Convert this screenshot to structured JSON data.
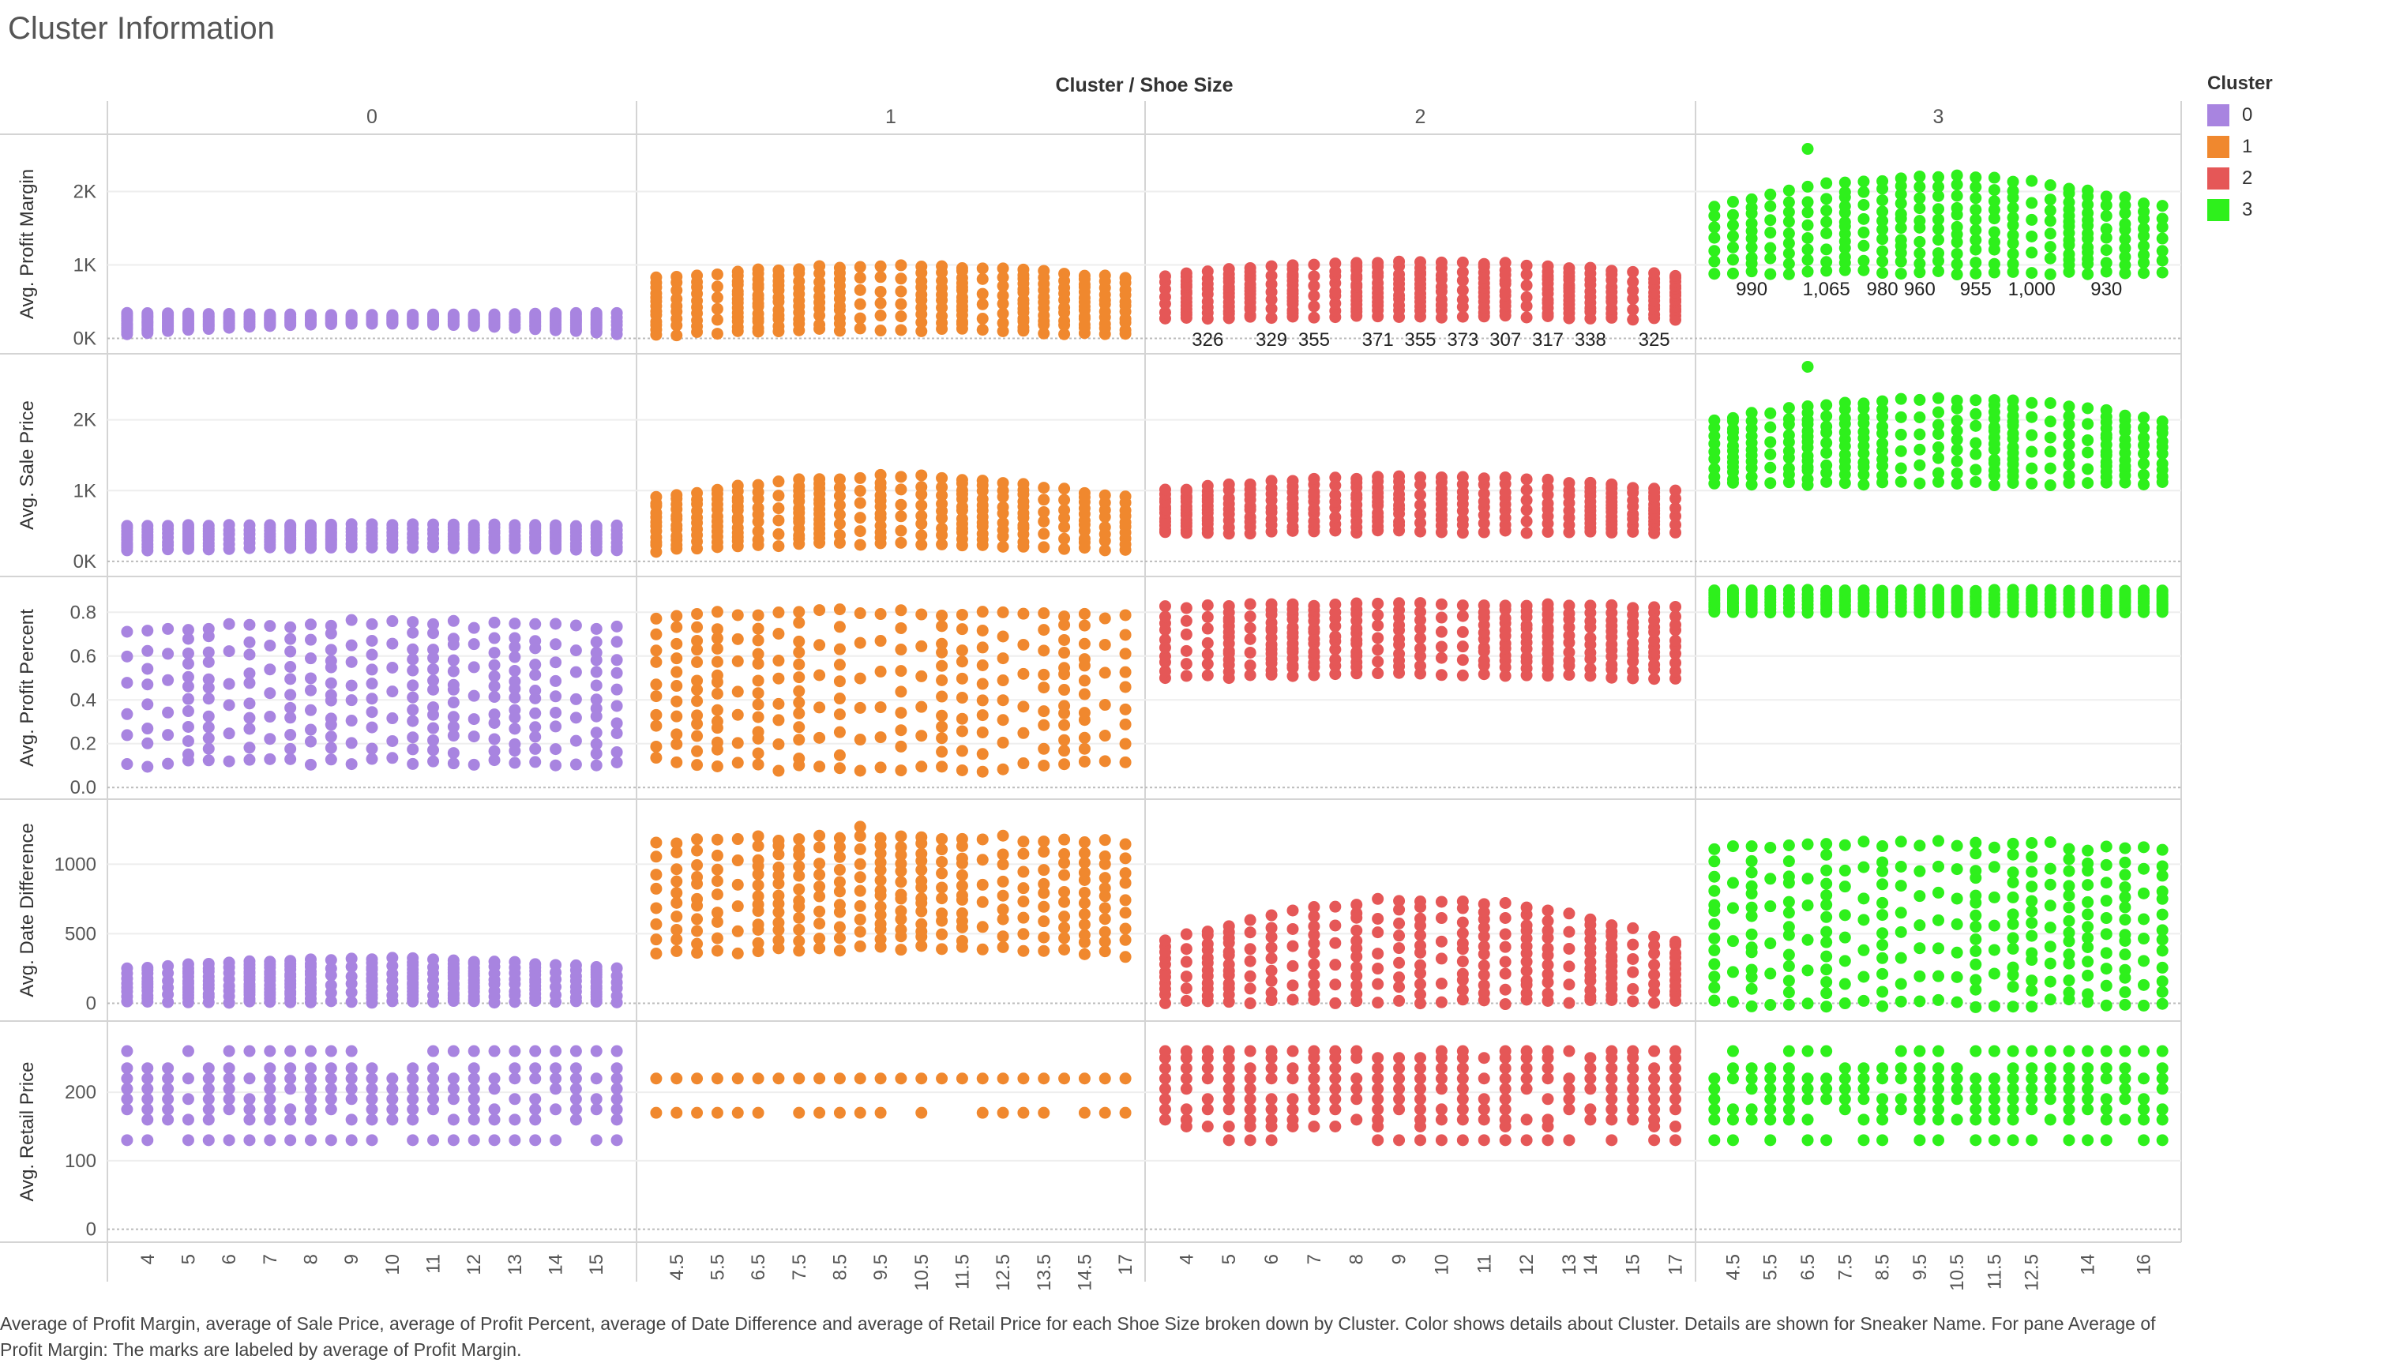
{
  "page": {
    "title": "Cluster Information",
    "caption": "Average of Profit Margin, average of Sale Price, average of Profit Percent, average of Date Difference and average of Retail Price for each Shoe Size broken down by Cluster.  Color shows details about Cluster.  Details are shown for Sneaker Name.  For pane Average of Profit Margin:  The marks are labeled by average of Profit Margin."
  },
  "legend": {
    "title": "Cluster",
    "items": [
      {
        "label": "0",
        "color": "#a884e0"
      },
      {
        "label": "1",
        "color": "#f0882e"
      },
      {
        "label": "2",
        "color": "#e55757"
      },
      {
        "label": "3",
        "color": "#2ef01c"
      }
    ]
  },
  "chart_data": {
    "type": "scatter",
    "header_title": "Cluster / Shoe Size",
    "columns": [
      {
        "cluster": "0",
        "sizes": [
          3.5,
          4,
          4.5,
          5,
          5.5,
          6,
          6.5,
          7,
          7.5,
          8,
          8.5,
          9,
          9.5,
          10,
          10.5,
          11,
          11.5,
          12,
          12.5,
          13,
          13.5,
          14,
          14.5,
          15,
          15.5
        ],
        "tick_labels": [
          "4",
          "5",
          "6",
          "7",
          "8",
          "9",
          "10",
          "11",
          "12",
          "13",
          "14",
          "15"
        ]
      },
      {
        "cluster": "1",
        "sizes": [
          4,
          4.5,
          5,
          5.5,
          6,
          6.5,
          7,
          7.5,
          8,
          8.5,
          9,
          9.5,
          10,
          10.5,
          11,
          11.5,
          12,
          12.5,
          13,
          13.5,
          14,
          14.5,
          15,
          17
        ],
        "tick_labels": [
          "4.5",
          "5.5",
          "6.5",
          "7.5",
          "8.5",
          "9.5",
          "10.5",
          "11.5",
          "12.5",
          "13.5",
          "14.5",
          "17"
        ]
      },
      {
        "cluster": "2",
        "sizes": [
          3.5,
          4,
          4.5,
          5,
          5.5,
          6,
          6.5,
          7,
          7.5,
          8,
          8.5,
          9,
          9.5,
          10,
          10.5,
          11,
          11.5,
          12,
          12.5,
          13,
          14,
          14.5,
          15,
          15.5,
          17
        ],
        "tick_labels": [
          "4",
          "5",
          "6",
          "7",
          "8",
          "9",
          "10",
          "11",
          "12",
          "13",
          "14",
          "15",
          "17"
        ]
      },
      {
        "cluster": "3",
        "sizes": [
          4,
          4.5,
          5,
          5.5,
          6,
          6.5,
          7,
          7.5,
          8,
          8.5,
          9,
          9.5,
          10,
          10.5,
          11,
          11.5,
          12,
          12.5,
          13,
          13.5,
          14,
          14.5,
          15,
          16,
          17
        ],
        "tick_labels": [
          "4.5",
          "5.5",
          "6.5",
          "7.5",
          "8.5",
          "9.5",
          "10.5",
          "11.5",
          "12.5",
          "14",
          "16"
        ]
      }
    ],
    "measures": [
      {
        "label": "Avg. Profit Margin",
        "ylim": [
          -80,
          2650
        ],
        "ticks": [
          {
            "v": 0,
            "t": "0K"
          },
          {
            "v": 1000,
            "t": "1K"
          },
          {
            "v": 2000,
            "t": "2K"
          }
        ],
        "ranges": {
          "0": [
            [
              60,
              350
            ],
            [
              200,
              320
            ]
          ],
          "1": [
            [
              50,
              820
            ],
            [
              120,
              990
            ]
          ],
          "2": [
            [
              260,
              860
            ],
            [
              300,
              1040
            ]
          ],
          "3": [
            [
              900,
              1800
            ],
            [
              900,
              2200
            ]
          ]
        },
        "outliers": {
          "3": [
            [
              6.5,
              2580
            ]
          ]
        }
      },
      {
        "label": "Avg. Sale Price",
        "ylim": [
          -80,
          2800
        ],
        "ticks": [
          {
            "v": 0,
            "t": "0K"
          },
          {
            "v": 1000,
            "t": "1K"
          },
          {
            "v": 2000,
            "t": "2K"
          }
        ],
        "ranges": {
          "0": [
            [
              150,
              500
            ],
            [
              200,
              520
            ]
          ],
          "1": [
            [
              150,
              900
            ],
            [
              250,
              1200
            ]
          ],
          "2": [
            [
              400,
              1000
            ],
            [
              420,
              1200
            ]
          ],
          "3": [
            [
              1100,
              2000
            ],
            [
              1100,
              2300
            ]
          ]
        },
        "outliers": {
          "3": [
            [
              6.5,
              2750
            ]
          ]
        }
      },
      {
        "label": "Avg. Profit Percent",
        "ylim": [
          -0.01,
          0.92
        ],
        "ticks": [
          {
            "v": 0,
            "t": "0.0"
          },
          {
            "v": 0.2,
            "t": "0.2"
          },
          {
            "v": 0.4,
            "t": "0.4"
          },
          {
            "v": 0.6,
            "t": "0.6"
          },
          {
            "v": 0.8,
            "t": "0.8"
          }
        ],
        "ranges": {
          "0": [
            [
              0.1,
              0.72
            ],
            [
              0.12,
              0.75
            ]
          ],
          "1": [
            [
              0.12,
              0.78
            ],
            [
              0.08,
              0.8
            ]
          ],
          "2": [
            [
              0.5,
              0.82
            ],
            [
              0.52,
              0.84
            ]
          ],
          "3": [
            [
              0.8,
              0.9
            ],
            [
              0.8,
              0.9
            ]
          ]
        },
        "outliers": {}
      },
      {
        "label": "Avg. Date Difference",
        "ylim": [
          -60,
          1400
        ],
        "ticks": [
          {
            "v": 0,
            "t": "0"
          },
          {
            "v": 500,
            "t": "500"
          },
          {
            "v": 1000,
            "t": "1000"
          }
        ],
        "ranges": {
          "0": [
            [
              10,
              250
            ],
            [
              10,
              320
            ]
          ],
          "1": [
            [
              350,
              1150
            ],
            [
              400,
              1200
            ]
          ],
          "2": [
            [
              10,
              450
            ],
            [
              10,
              750
            ]
          ],
          "3": [
            [
              0,
              1100
            ],
            [
              0,
              1150
            ]
          ]
        },
        "outliers": {
          "1": [
            [
              9,
              1270
            ]
          ]
        }
      },
      {
        "label": "Avg. Retail Price",
        "ylim": [
          -5,
          290
        ],
        "ticks": [
          {
            "v": 0,
            "t": "0"
          },
          {
            "v": 100,
            "t": "100"
          },
          {
            "v": 200,
            "t": "200"
          }
        ],
        "discrete": {
          "0": [
            130,
            160,
            175,
            190,
            205,
            220,
            235,
            260
          ],
          "1": [
            170,
            220
          ],
          "2": [
            130,
            150,
            160,
            175,
            190,
            205,
            220,
            235,
            250,
            260
          ],
          "3": [
            130,
            160,
            175,
            190,
            205,
            220,
            235,
            260
          ]
        },
        "outliers": {}
      }
    ],
    "labels": {
      "measure": "Avg. Profit Margin",
      "points": [
        {
          "cluster": "2",
          "size": 4.5,
          "value": "326"
        },
        {
          "cluster": "2",
          "size": 6,
          "value": "329"
        },
        {
          "cluster": "2",
          "size": 7,
          "value": "355"
        },
        {
          "cluster": "2",
          "size": 8.5,
          "value": "371"
        },
        {
          "cluster": "2",
          "size": 9.5,
          "value": "355"
        },
        {
          "cluster": "2",
          "size": 10.5,
          "value": "373"
        },
        {
          "cluster": "2",
          "size": 11.5,
          "value": "307"
        },
        {
          "cluster": "2",
          "size": 12.5,
          "value": "317"
        },
        {
          "cluster": "2",
          "size": 14,
          "value": "338"
        },
        {
          "cluster": "2",
          "size": 15.5,
          "value": "325"
        },
        {
          "cluster": "3",
          "size": 5,
          "value": "990"
        },
        {
          "cluster": "3",
          "size": 7,
          "value": "1,065"
        },
        {
          "cluster": "3",
          "size": 8.5,
          "value": "980"
        },
        {
          "cluster": "3",
          "size": 9.5,
          "value": "960"
        },
        {
          "cluster": "3",
          "size": 11,
          "value": "955"
        },
        {
          "cluster": "3",
          "size": 12.5,
          "value": "1,000"
        },
        {
          "cluster": "3",
          "size": 14.5,
          "value": "930"
        }
      ]
    }
  }
}
